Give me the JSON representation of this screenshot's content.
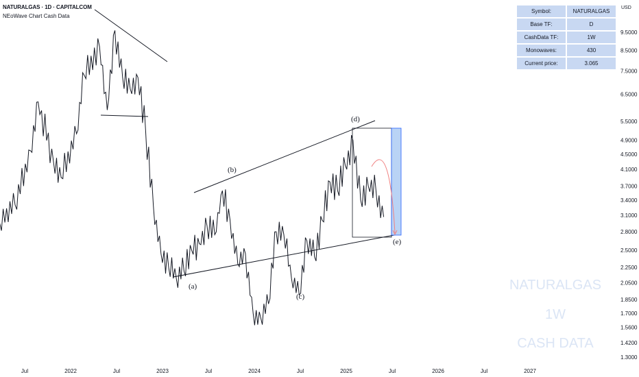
{
  "header": {
    "title": "NATURALGAS · 1D · CAPITALCOM",
    "subtitle": "NEoWave Chart Cash Data"
  },
  "info_table": [
    {
      "key": "Symbol:",
      "value": "NATURALGAS"
    },
    {
      "key": "Base TF:",
      "value": "D"
    },
    {
      "key": "CashData TF:",
      "value": "1W"
    },
    {
      "key": "Monowaves:",
      "value": "430"
    },
    {
      "key": "Current price:",
      "value": "3.065"
    }
  ],
  "currency": "USD",
  "watermark": {
    "line1": "NATURALGAS",
    "line2": "1W",
    "line3": "CASH DATA"
  },
  "colors": {
    "price": "#131722",
    "accent_fill": "#b9d3f5",
    "accent_stroke": "#2962ff",
    "table_bg": "#c8d8f2",
    "watermark": "#dbe5f5",
    "forecast_curve": "#f08080"
  },
  "chart_data": {
    "type": "line",
    "title": "NATURALGAS · 1D · CAPITALCOM",
    "y_scale": "log",
    "ylim": [
      1.2,
      11.0
    ],
    "y_ticks": [
      "9.5000",
      "8.5000",
      "7.5000",
      "6.5000",
      "5.5000",
      "4.9000",
      "4.5000",
      "4.1000",
      "3.7000",
      "3.4000",
      "3.1000",
      "2.8000",
      "2.5000",
      "2.2500",
      "2.0500",
      "1.8500",
      "1.7000",
      "1.5600",
      "1.4200",
      "1.3000"
    ],
    "x_ticks": [
      "Jul",
      "2022",
      "Jul",
      "2023",
      "Jul",
      "2024",
      "Jul",
      "2025",
      "Jul",
      "2026",
      "Jul",
      "2027"
    ],
    "series": [
      {
        "x": [
          "2021-05",
          "2021-07",
          "2021-09",
          "2021-10",
          "2021-12",
          "2022-01",
          "2022-03",
          "2022-04",
          "2022-06",
          "2022-07",
          "2022-08",
          "2022-09",
          "2022-10",
          "2022-11",
          "2022-12",
          "2023-01",
          "2023-02",
          "2023-03",
          "2023-04",
          "2023-05",
          "2023-06",
          "2023-07",
          "2023-08",
          "2023-09",
          "2023-10",
          "2023-11",
          "2023-12",
          "2024-01",
          "2024-02",
          "2024-03",
          "2024-04",
          "2024-05",
          "2024-06",
          "2024-07",
          "2024-08",
          "2024-09",
          "2024-10",
          "2024-11",
          "2024-12",
          "2025-01",
          "2025-02",
          "2025-03",
          "2025-04",
          "2025-05",
          "2025-06",
          "2025-07"
        ],
        "y": [
          2.95,
          3.3,
          4.6,
          6.2,
          4.3,
          3.9,
          5.1,
          7.3,
          8.7,
          5.9,
          9.6,
          7.2,
          6.7,
          7.2,
          5.2,
          3.3,
          2.45,
          2.25,
          2.1,
          2.2,
          2.5,
          2.6,
          2.9,
          2.75,
          3.6,
          3.0,
          2.3,
          2.45,
          1.7,
          1.65,
          1.8,
          2.8,
          2.75,
          2.1,
          1.9,
          2.65,
          2.4,
          3.0,
          3.8,
          3.6,
          4.2,
          4.9,
          3.4,
          3.7,
          3.6,
          3.065
        ]
      }
    ],
    "annotations": [
      {
        "label": "(a)",
        "x": "2023-04",
        "y": 2.05
      },
      {
        "label": "(b)",
        "x": "2023-10",
        "y": 3.65
      },
      {
        "label": "(c)",
        "x": "2024-08",
        "y": 1.9
      },
      {
        "label": "(d)",
        "x": "2025-03",
        "y": 4.9
      },
      {
        "label": "(e)",
        "x": "2025-09",
        "y": 2.6
      }
    ],
    "legend": "none",
    "grid": false
  }
}
